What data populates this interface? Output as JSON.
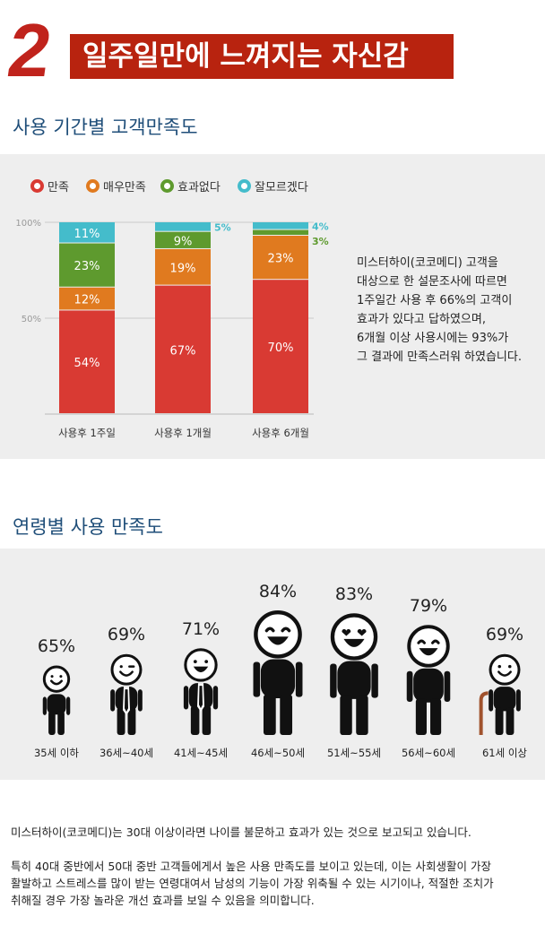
{
  "header": {
    "number": "2",
    "title": "일주일만에 느껴지는 자신감"
  },
  "section1": {
    "title": "사용 기간별 고객만족도",
    "legend": [
      {
        "label": "만족",
        "color": "#d93a33"
      },
      {
        "label": "매우만족",
        "color": "#e07a1f"
      },
      {
        "label": "효과없다",
        "color": "#5e9a2e"
      },
      {
        "label": "잘모르겠다",
        "color": "#44bccb"
      }
    ],
    "description": [
      "미스터하이(코코메디) 고객을",
      "대상으로 한 설문조사에 따르면",
      "1주일간 사용 후 66%의 고객이",
      "효과가 있다고 답하였으며,",
      "6개월 이상 사용시에는 93%가",
      "그 결과에 만족스러워 하였습니다."
    ]
  },
  "chart_data": [
    {
      "type": "bar",
      "stacked": true,
      "categories": [
        "사용후 1주일",
        "사용후 1개월",
        "사용후 6개월"
      ],
      "series": [
        {
          "name": "만족",
          "values": [
            54,
            67,
            70
          ],
          "color": "#d93a33"
        },
        {
          "name": "매우만족",
          "values": [
            12,
            19,
            23
          ],
          "color": "#e07a1f"
        },
        {
          "name": "효과없다",
          "values": [
            23,
            9,
            3
          ],
          "color": "#5e9a2e"
        },
        {
          "name": "잘모르겠다",
          "values": [
            11,
            5,
            4
          ],
          "color": "#44bccb"
        }
      ],
      "data_labels": [
        [
          "54%",
          "67%",
          "70%"
        ],
        [
          "12%",
          "19%",
          "23%"
        ],
        [
          "23%",
          "9%",
          "3%"
        ],
        [
          "11%",
          "5%",
          "4%"
        ]
      ],
      "yticks": [
        "100%",
        "50%"
      ],
      "ytick_values": [
        100,
        50
      ],
      "ylim": [
        0,
        100
      ],
      "grid": true
    },
    {
      "type": "bar",
      "title": "연령별 사용 만족도",
      "categories": [
        "35세 이하",
        "36세~40세",
        "41세~45세",
        "46세~50세",
        "51세~55세",
        "56세~60세",
        "61세 이상"
      ],
      "values": [
        65,
        69,
        71,
        84,
        83,
        79,
        69
      ],
      "labels": [
        "65%",
        "69%",
        "71%",
        "84%",
        "83%",
        "79%",
        "69%"
      ]
    }
  ],
  "section2": {
    "title": "연령별 사용 만족도"
  },
  "footer": {
    "paragraph1": "미스터하이(코코메디)는 30대 이상이라면 나이를 불문하고 효과가 있는 것으로 보고되고 있습니다.",
    "paragraph2_lines": [
      "특히 40대 중반에서 50대 중반 고객들에게서 높은 사용 만족도를 보이고 있는데, 이는 사회생활이 가장",
      "활발하고 스트레스를 많이 받는 연령대여서 남성의 기능이 가장 위축될 수 있는 시기이나, 적절한 조치가",
      "취해질 경우 가장 놀라운 개선 효과를 보일 수 있음을 의미합니다."
    ]
  },
  "people_icons": [
    "smile-icon",
    "wink-icon",
    "grin-icon",
    "laugh-icon",
    "heart-eyes-icon",
    "happy-closed-eyes-icon",
    "elderly-smile-icon"
  ]
}
